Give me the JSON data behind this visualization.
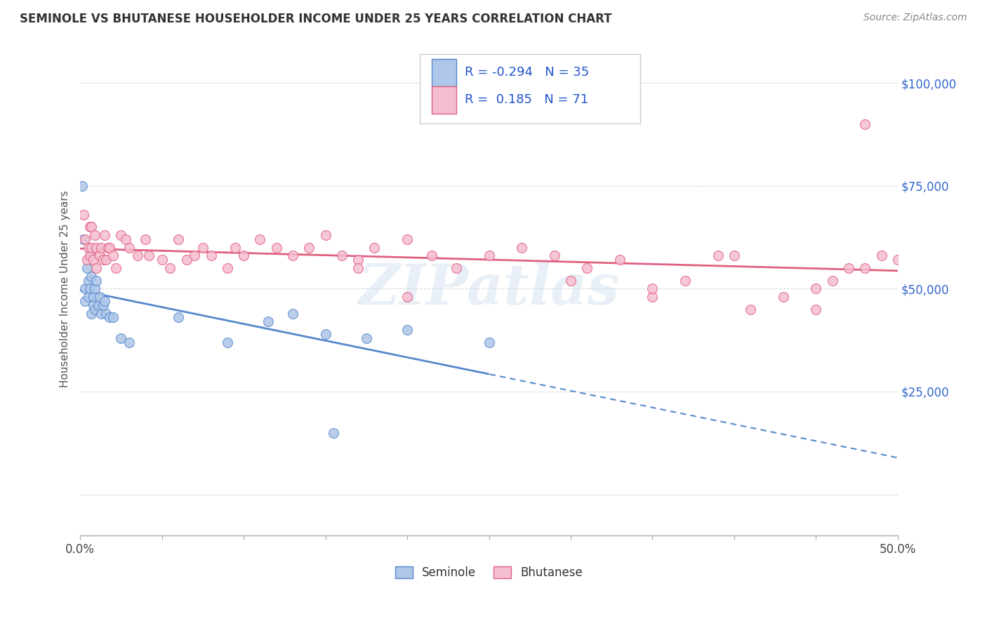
{
  "title": "SEMINOLE VS BHUTANESE HOUSEHOLDER INCOME UNDER 25 YEARS CORRELATION CHART",
  "source": "Source: ZipAtlas.com",
  "ylabel_label": "Householder Income Under 25 years",
  "seminole_R": -0.294,
  "seminole_N": 35,
  "bhutanese_R": 0.185,
  "bhutanese_N": 71,
  "seminole_color": "#aec6e8",
  "bhutanese_color": "#f5bdd0",
  "seminole_line_color": "#5588cc",
  "bhutanese_line_color": "#e06080",
  "watermark_text": "ZIPatlas",
  "xmin": 0.0,
  "xmax": 0.5,
  "ymin": -10000,
  "ymax": 110000,
  "seminole_x": [
    0.001,
    0.002,
    0.003,
    0.003,
    0.004,
    0.005,
    0.005,
    0.006,
    0.006,
    0.007,
    0.007,
    0.008,
    0.008,
    0.009,
    0.009,
    0.01,
    0.011,
    0.012,
    0.013,
    0.014,
    0.015,
    0.016,
    0.018,
    0.02,
    0.025,
    0.03,
    0.06,
    0.09,
    0.115,
    0.13,
    0.15,
    0.175,
    0.2,
    0.25,
    0.155
  ],
  "seminole_y": [
    75000,
    62000,
    50000,
    47000,
    55000,
    48000,
    52000,
    58000,
    50000,
    53000,
    44000,
    48000,
    46000,
    50000,
    45000,
    52000,
    46000,
    48000,
    44000,
    46000,
    47000,
    44000,
    43000,
    43000,
    38000,
    37000,
    43000,
    37000,
    42000,
    44000,
    39000,
    38000,
    40000,
    37000,
    15000
  ],
  "bhutanese_x": [
    0.002,
    0.003,
    0.004,
    0.005,
    0.006,
    0.006,
    0.007,
    0.007,
    0.008,
    0.009,
    0.01,
    0.01,
    0.012,
    0.013,
    0.014,
    0.015,
    0.016,
    0.017,
    0.018,
    0.02,
    0.022,
    0.025,
    0.028,
    0.03,
    0.035,
    0.04,
    0.042,
    0.05,
    0.055,
    0.06,
    0.065,
    0.07,
    0.075,
    0.08,
    0.09,
    0.095,
    0.1,
    0.11,
    0.12,
    0.13,
    0.14,
    0.15,
    0.16,
    0.17,
    0.18,
    0.2,
    0.215,
    0.23,
    0.25,
    0.27,
    0.29,
    0.31,
    0.33,
    0.35,
    0.37,
    0.39,
    0.41,
    0.43,
    0.45,
    0.47,
    0.49,
    0.5,
    0.48,
    0.46,
    0.2,
    0.3,
    0.35,
    0.4,
    0.45,
    0.48,
    0.17
  ],
  "bhutanese_y": [
    68000,
    62000,
    57000,
    60000,
    65000,
    58000,
    65000,
    60000,
    57000,
    63000,
    55000,
    60000,
    58000,
    60000,
    57000,
    63000,
    57000,
    60000,
    60000,
    58000,
    55000,
    63000,
    62000,
    60000,
    58000,
    62000,
    58000,
    57000,
    55000,
    62000,
    57000,
    58000,
    60000,
    58000,
    55000,
    60000,
    58000,
    62000,
    60000,
    58000,
    60000,
    63000,
    58000,
    57000,
    60000,
    62000,
    58000,
    55000,
    58000,
    60000,
    58000,
    55000,
    57000,
    48000,
    52000,
    58000,
    45000,
    48000,
    50000,
    55000,
    58000,
    57000,
    55000,
    52000,
    48000,
    52000,
    50000,
    58000,
    45000,
    90000,
    55000
  ]
}
